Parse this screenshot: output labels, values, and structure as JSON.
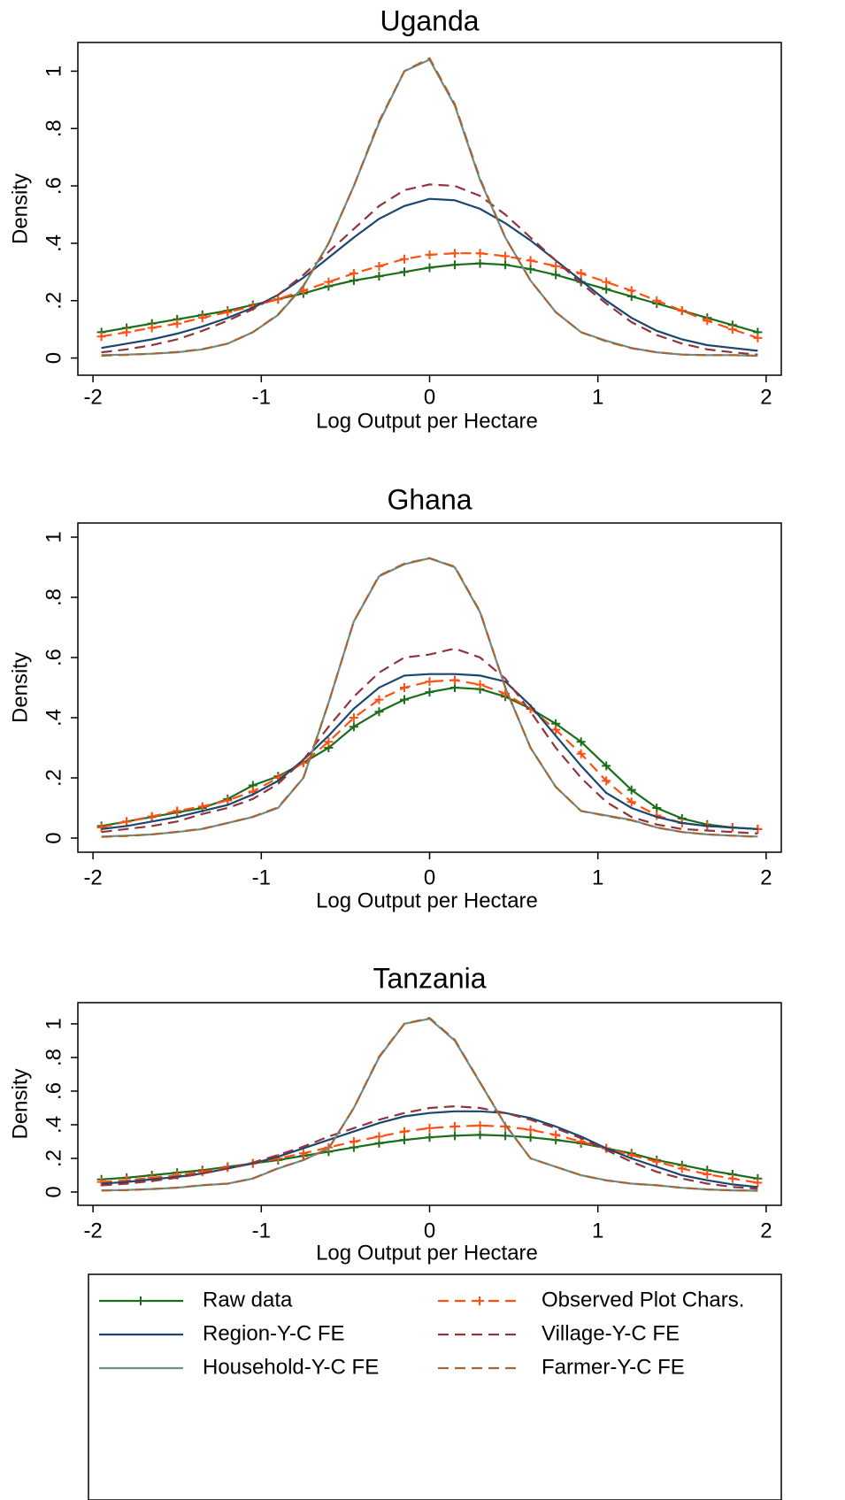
{
  "chart_data": [
    {
      "type": "line",
      "title": "Uganda",
      "x_label": "Log Output per Hectare",
      "y_label": "Density",
      "x": [
        -1.95,
        -1.8,
        -1.65,
        -1.5,
        -1.35,
        -1.2,
        -1.05,
        -0.9,
        -0.75,
        -0.6,
        -0.45,
        -0.3,
        -0.15,
        0,
        0.15,
        0.3,
        0.45,
        0.6,
        0.75,
        0.9,
        1.05,
        1.2,
        1.35,
        1.5,
        1.65,
        1.8,
        1.95
      ],
      "xlim": [
        -2.09,
        2.09
      ],
      "xticks": [
        -2,
        -1,
        0,
        1,
        2
      ],
      "ylim": [
        -0.06,
        1.1
      ],
      "yticks": [
        0,
        {
          "value": 0.2,
          "label": ".2"
        },
        {
          "value": 0.4,
          "label": ".4"
        },
        {
          "value": 0.6,
          "label": ".6"
        },
        {
          "value": 0.8,
          "label": ".8"
        },
        1
      ],
      "series": [
        {
          "color": "#1a6e1a",
          "dash": false,
          "markers": "plus",
          "values": [
            0.09,
            0.105,
            0.12,
            0.135,
            0.15,
            0.165,
            0.185,
            0.205,
            0.225,
            0.25,
            0.27,
            0.285,
            0.3,
            0.315,
            0.325,
            0.33,
            0.325,
            0.31,
            0.29,
            0.265,
            0.24,
            0.215,
            0.19,
            0.165,
            0.14,
            0.115,
            0.09
          ]
        },
        {
          "color": "#ff4f12",
          "dash": true,
          "markers": "plus",
          "values": [
            0.075,
            0.09,
            0.105,
            0.12,
            0.14,
            0.16,
            0.18,
            0.205,
            0.235,
            0.265,
            0.295,
            0.32,
            0.345,
            0.36,
            0.365,
            0.365,
            0.355,
            0.34,
            0.32,
            0.295,
            0.265,
            0.235,
            0.2,
            0.165,
            0.13,
            0.1,
            0.07
          ]
        },
        {
          "color": "#1a476f",
          "dash": false,
          "values": [
            0.035,
            0.05,
            0.065,
            0.085,
            0.11,
            0.14,
            0.175,
            0.22,
            0.28,
            0.35,
            0.42,
            0.485,
            0.53,
            0.555,
            0.55,
            0.52,
            0.47,
            0.41,
            0.34,
            0.27,
            0.2,
            0.14,
            0.095,
            0.065,
            0.045,
            0.035,
            0.025
          ]
        },
        {
          "color": "#90353b",
          "dash": true,
          "values": [
            0.02,
            0.03,
            0.045,
            0.065,
            0.095,
            0.13,
            0.17,
            0.22,
            0.29,
            0.37,
            0.45,
            0.53,
            0.585,
            0.605,
            0.6,
            0.565,
            0.5,
            0.42,
            0.34,
            0.26,
            0.19,
            0.125,
            0.08,
            0.05,
            0.03,
            0.02,
            0.012
          ]
        },
        {
          "color": "#6e8e84",
          "dash": false,
          "values": [
            0.01,
            0.012,
            0.015,
            0.02,
            0.03,
            0.05,
            0.09,
            0.15,
            0.25,
            0.4,
            0.6,
            0.82,
            1.0,
            1.04,
            0.88,
            0.62,
            0.42,
            0.27,
            0.16,
            0.09,
            0.06,
            0.035,
            0.02,
            0.012,
            0.01,
            0.01,
            0.008
          ]
        },
        {
          "color": "#a0683a",
          "dash": true,
          "values": [
            0.008,
            0.011,
            0.015,
            0.021,
            0.031,
            0.05,
            0.09,
            0.152,
            0.252,
            0.4,
            0.6,
            0.825,
            1.0,
            1.045,
            0.885,
            0.625,
            0.42,
            0.27,
            0.16,
            0.09,
            0.058,
            0.034,
            0.02,
            0.012,
            0.01,
            0.01,
            0.008
          ]
        }
      ]
    },
    {
      "type": "line",
      "title": "Ghana",
      "x_label": "Log Output per Hectare",
      "y_label": "Density",
      "x": [
        -1.95,
        -1.8,
        -1.65,
        -1.5,
        -1.35,
        -1.2,
        -1.05,
        -0.9,
        -0.75,
        -0.6,
        -0.45,
        -0.3,
        -0.15,
        0,
        0.15,
        0.3,
        0.45,
        0.6,
        0.75,
        0.9,
        1.05,
        1.2,
        1.35,
        1.5,
        1.65,
        1.8,
        1.95
      ],
      "xlim": [
        -2.09,
        2.09
      ],
      "xticks": [
        -2,
        -1,
        0,
        1,
        2
      ],
      "ylim": [
        -0.047,
        1.047
      ],
      "yticks": [
        0,
        {
          "value": 0.2,
          "label": ".2"
        },
        {
          "value": 0.4,
          "label": ".4"
        },
        {
          "value": 0.6,
          "label": ".6"
        },
        {
          "value": 0.8,
          "label": ".8"
        },
        1
      ],
      "series": [
        {
          "color": "#1a6e1a",
          "dash": false,
          "markers": "plus",
          "values": [
            0.04,
            0.055,
            0.07,
            0.085,
            0.1,
            0.13,
            0.175,
            0.205,
            0.25,
            0.3,
            0.37,
            0.42,
            0.46,
            0.485,
            0.5,
            0.495,
            0.47,
            0.43,
            0.38,
            0.32,
            0.24,
            0.16,
            0.1,
            0.065,
            0.045,
            0.035,
            0.03
          ]
        },
        {
          "color": "#ff4f12",
          "dash": true,
          "markers": "plus",
          "values": [
            0.035,
            0.055,
            0.072,
            0.09,
            0.105,
            0.125,
            0.155,
            0.2,
            0.25,
            0.32,
            0.4,
            0.46,
            0.5,
            0.52,
            0.525,
            0.51,
            0.48,
            0.43,
            0.36,
            0.28,
            0.19,
            0.12,
            0.075,
            0.05,
            0.04,
            0.035,
            0.03
          ]
        },
        {
          "color": "#1a476f",
          "dash": false,
          "values": [
            0.03,
            0.04,
            0.055,
            0.07,
            0.09,
            0.11,
            0.145,
            0.19,
            0.26,
            0.34,
            0.43,
            0.5,
            0.54,
            0.545,
            0.545,
            0.54,
            0.52,
            0.44,
            0.34,
            0.24,
            0.15,
            0.1,
            0.07,
            0.05,
            0.04,
            0.035,
            0.03
          ]
        },
        {
          "color": "#90353b",
          "dash": true,
          "values": [
            0.02,
            0.03,
            0.04,
            0.055,
            0.08,
            0.1,
            0.13,
            0.18,
            0.26,
            0.37,
            0.47,
            0.55,
            0.6,
            0.61,
            0.63,
            0.6,
            0.53,
            0.42,
            0.3,
            0.2,
            0.12,
            0.07,
            0.045,
            0.03,
            0.025,
            0.02,
            0.015
          ]
        },
        {
          "color": "#6e8e84",
          "dash": false,
          "values": [
            0.005,
            0.008,
            0.012,
            0.02,
            0.03,
            0.05,
            0.07,
            0.1,
            0.2,
            0.45,
            0.72,
            0.87,
            0.91,
            0.93,
            0.9,
            0.75,
            0.5,
            0.3,
            0.17,
            0.09,
            0.075,
            0.06,
            0.035,
            0.02,
            0.012,
            0.008,
            0.005
          ]
        },
        {
          "color": "#a0683a",
          "dash": true,
          "values": [
            0.004,
            0.007,
            0.012,
            0.021,
            0.031,
            0.05,
            0.071,
            0.102,
            0.2,
            0.45,
            0.72,
            0.872,
            0.912,
            0.93,
            0.902,
            0.752,
            0.5,
            0.3,
            0.17,
            0.09,
            0.074,
            0.059,
            0.035,
            0.02,
            0.012,
            0.008,
            0.004
          ]
        }
      ]
    },
    {
      "type": "line",
      "title": "Tanzania",
      "x_label": "Log Output per Hectare",
      "y_label": "Density",
      "x": [
        -1.95,
        -1.8,
        -1.65,
        -1.5,
        -1.35,
        -1.2,
        -1.05,
        -0.9,
        -0.75,
        -0.6,
        -0.45,
        -0.3,
        -0.15,
        0,
        0.15,
        0.3,
        0.45,
        0.6,
        0.75,
        0.9,
        1.05,
        1.2,
        1.35,
        1.5,
        1.65,
        1.8,
        1.95
      ],
      "xlim": [
        -2.09,
        2.09
      ],
      "xticks": [
        -2,
        -1,
        0,
        1,
        2
      ],
      "ylim": [
        -0.079,
        1.126
      ],
      "yticks": [
        0,
        {
          "value": 0.2,
          "label": ".2"
        },
        {
          "value": 0.4,
          "label": ".4"
        },
        {
          "value": 0.6,
          "label": ".6"
        },
        {
          "value": 0.8,
          "label": ".8"
        },
        1
      ],
      "series": [
        {
          "name": "Raw data",
          "color": "#1a6e1a",
          "dash": false,
          "markers": "plus",
          "values": [
            0.075,
            0.085,
            0.1,
            0.115,
            0.13,
            0.15,
            0.17,
            0.19,
            0.215,
            0.24,
            0.265,
            0.29,
            0.31,
            0.325,
            0.335,
            0.34,
            0.335,
            0.325,
            0.31,
            0.29,
            0.26,
            0.23,
            0.19,
            0.16,
            0.13,
            0.105,
            0.08
          ]
        },
        {
          "name": "Observed Plot Chars.",
          "color": "#ff4f12",
          "dash": true,
          "markers": "plus",
          "values": [
            0.06,
            0.07,
            0.085,
            0.1,
            0.12,
            0.145,
            0.17,
            0.2,
            0.23,
            0.265,
            0.3,
            0.33,
            0.36,
            0.38,
            0.39,
            0.395,
            0.39,
            0.37,
            0.34,
            0.3,
            0.26,
            0.22,
            0.18,
            0.14,
            0.105,
            0.08,
            0.055
          ]
        },
        {
          "name": "Region-Y-C FE",
          "color": "#1a476f",
          "dash": false,
          "values": [
            0.05,
            0.06,
            0.075,
            0.09,
            0.11,
            0.14,
            0.17,
            0.21,
            0.26,
            0.31,
            0.36,
            0.41,
            0.45,
            0.47,
            0.48,
            0.48,
            0.47,
            0.44,
            0.39,
            0.33,
            0.26,
            0.2,
            0.15,
            0.1,
            0.07,
            0.045,
            0.03
          ]
        },
        {
          "name": "Village-Y-C FE",
          "color": "#90353b",
          "dash": true,
          "values": [
            0.04,
            0.05,
            0.065,
            0.085,
            0.11,
            0.14,
            0.175,
            0.22,
            0.27,
            0.33,
            0.38,
            0.43,
            0.47,
            0.5,
            0.51,
            0.5,
            0.47,
            0.43,
            0.38,
            0.32,
            0.25,
            0.18,
            0.12,
            0.08,
            0.05,
            0.03,
            0.02
          ]
        },
        {
          "name": "Household-Y-C FE",
          "color": "#6e8e84",
          "dash": false,
          "values": [
            0.01,
            0.012,
            0.018,
            0.025,
            0.04,
            0.05,
            0.08,
            0.14,
            0.19,
            0.26,
            0.5,
            0.8,
            1.0,
            1.03,
            0.9,
            0.65,
            0.4,
            0.2,
            0.15,
            0.1,
            0.07,
            0.05,
            0.04,
            0.025,
            0.015,
            0.01,
            0.008
          ]
        },
        {
          "name": "Farmer-Y-C FE",
          "color": "#a0683a",
          "dash": true,
          "values": [
            0.009,
            0.011,
            0.018,
            0.026,
            0.041,
            0.05,
            0.081,
            0.142,
            0.19,
            0.26,
            0.5,
            0.805,
            1.0,
            1.035,
            0.905,
            0.652,
            0.4,
            0.2,
            0.15,
            0.1,
            0.069,
            0.05,
            0.04,
            0.025,
            0.015,
            0.01,
            0.008
          ]
        }
      ]
    }
  ]
}
